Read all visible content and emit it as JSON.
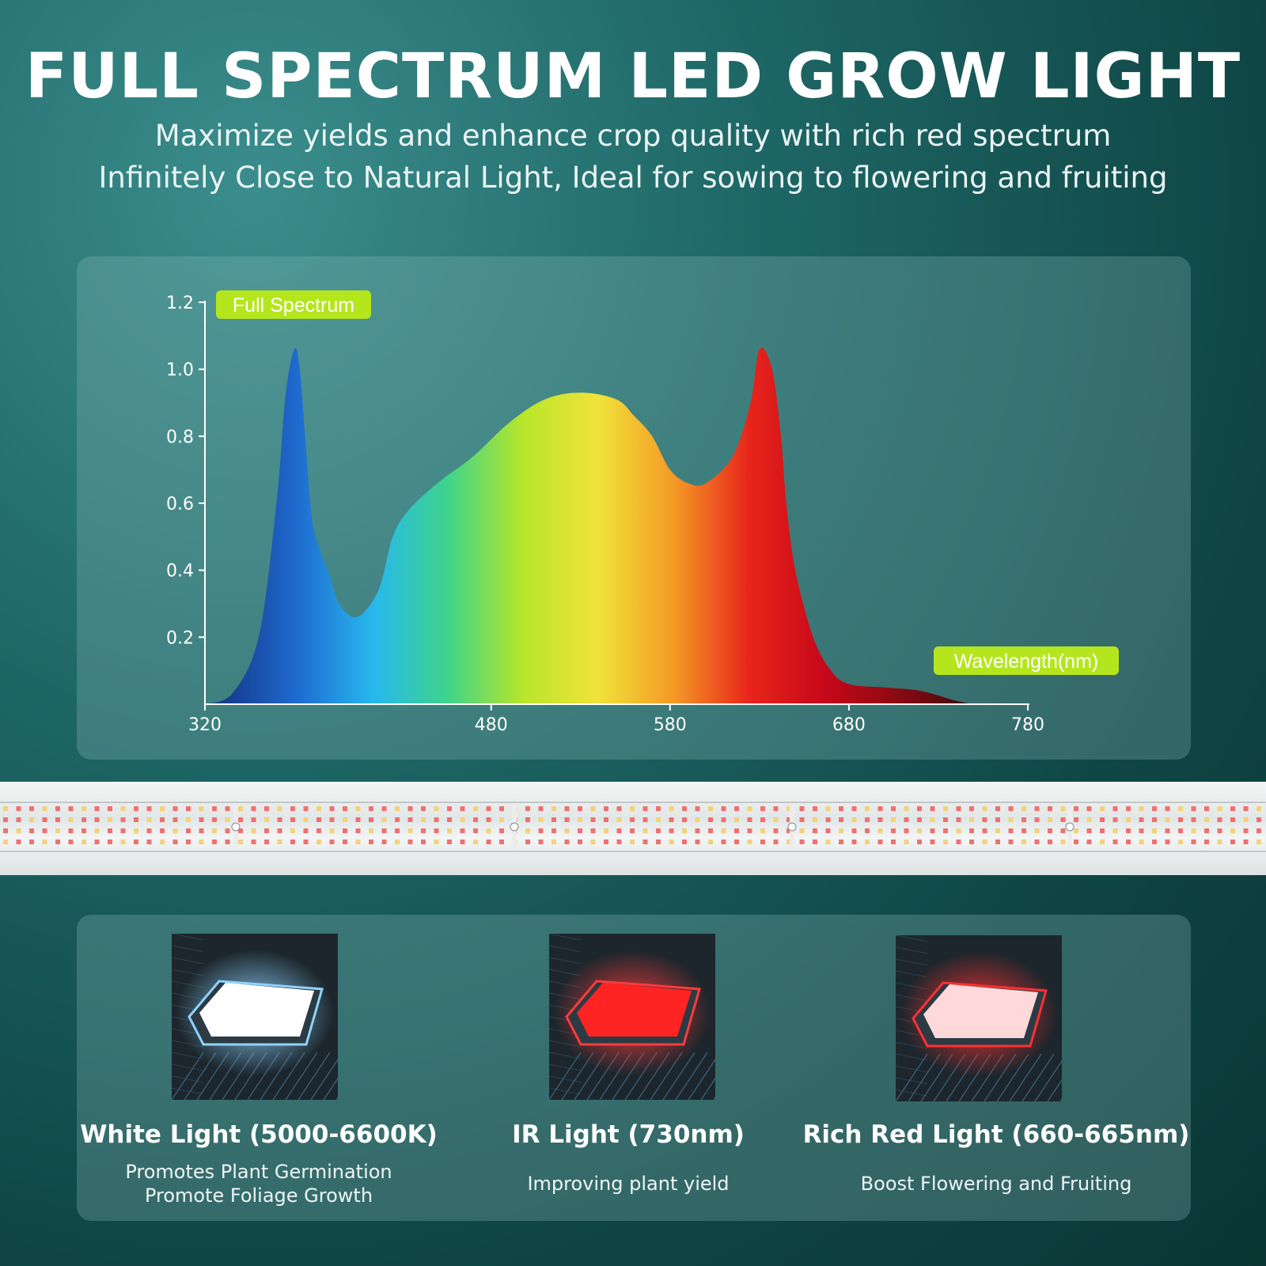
{
  "header": {
    "title": "FULL SPECTRUM LED GROW LIGHT",
    "subtitle_1": "Maximize yields and enhance crop quality with rich red spectrum",
    "subtitle_2": "Infinitely Close to Natural Light, Ideal for sowing to flowering and fruiting"
  },
  "chart_data": {
    "type": "area",
    "title": "Full Spectrum",
    "xlabel": "Wavelength(nm)",
    "ylabel": "",
    "x_ticks": [
      320,
      480,
      580,
      680,
      780
    ],
    "y_ticks": [
      0.2,
      0.4,
      0.6,
      0.8,
      1.0,
      1.2
    ],
    "y_tick_labels": [
      "0.2",
      "0.4",
      "0.6",
      "0.8",
      "1.0",
      "1.2"
    ],
    "xlim": [
      320,
      780
    ],
    "ylim": [
      0,
      1.2
    ],
    "grid": false,
    "series": [
      {
        "x": [
          320,
          335,
          350,
          360,
          365,
          370,
          373,
          376,
          380,
          385,
          390,
          395,
          405,
          417,
          425,
          434,
          450,
          470,
          490,
          510,
          530,
          550,
          560,
          570,
          580,
          590,
          600,
          615,
          625,
          630,
          637,
          642,
          645,
          650,
          660,
          670,
          680,
          700,
          720,
          740,
          750
        ],
        "y": [
          0.0,
          0.03,
          0.2,
          0.6,
          0.92,
          1.06,
          1.0,
          0.8,
          0.55,
          0.45,
          0.38,
          0.3,
          0.26,
          0.34,
          0.5,
          0.58,
          0.66,
          0.74,
          0.84,
          0.91,
          0.93,
          0.91,
          0.86,
          0.8,
          0.7,
          0.66,
          0.66,
          0.74,
          0.9,
          1.06,
          1.0,
          0.8,
          0.6,
          0.4,
          0.2,
          0.1,
          0.06,
          0.05,
          0.04,
          0.01,
          0.0
        ]
      }
    ],
    "colors": {
      "fill_stops": [
        "#163a8c",
        "#1f6bd0",
        "#27b8ee",
        "#3fd48a",
        "#b8e62a",
        "#f2e23a",
        "#f49a25",
        "#e8251b",
        "#c7081a",
        "#8a0a12",
        "#3a0a10"
      ],
      "axis": "#ffffff",
      "badge": "#b5e61d"
    }
  },
  "cards": [
    {
      "title": "White Light (5000-6600K)",
      "desc_lines": [
        "Promotes Plant Germination",
        "Promote Foliage Growth"
      ],
      "chip_color": "#ffffff",
      "glow_color": "#8fd3ff"
    },
    {
      "title": "IR Light (730nm)",
      "desc_lines": [
        "Improving plant yield"
      ],
      "chip_color": "#ff2424",
      "glow_color": "#ff3b3b"
    },
    {
      "title": "Rich Red Light (660-665nm)",
      "desc_lines": [
        "Boost Flowering and Fruiting"
      ],
      "chip_color": "#ffd9d9",
      "glow_color": "#ff3030"
    }
  ]
}
